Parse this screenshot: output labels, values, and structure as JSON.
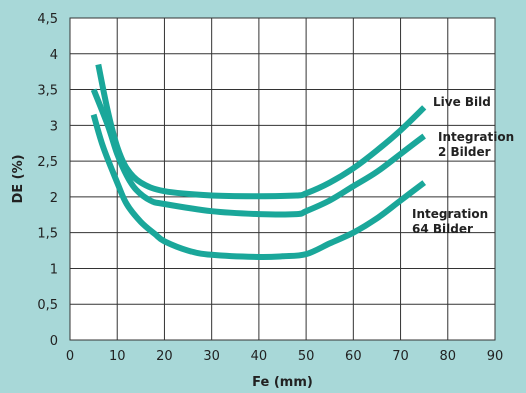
{
  "chart_data": {
    "type": "line",
    "title": "",
    "xlabel": "Fe (mm)",
    "ylabel": "DE (%)",
    "xlim": [
      0,
      90
    ],
    "ylim": [
      0,
      4.5
    ],
    "x_ticks": [
      "0",
      "10",
      "20",
      "30",
      "40",
      "50",
      "60",
      "70",
      "80",
      "90"
    ],
    "y_ticks": [
      "0",
      "0,5",
      "1",
      "1,5",
      "2",
      "2,5",
      "3",
      "3,5",
      "4",
      "4,5"
    ],
    "grid": true,
    "colors": {
      "background": "#a8d8d8",
      "plot_area": "#ffffff",
      "grid": "#333333",
      "series": "#1aa79a"
    },
    "series": [
      {
        "label_lines": [
          "Live Bild"
        ],
        "points": [
          [
            6,
            3.85
          ],
          [
            8,
            3.2
          ],
          [
            10,
            2.7
          ],
          [
            12,
            2.4
          ],
          [
            15,
            2.2
          ],
          [
            20,
            2.08
          ],
          [
            30,
            2.02
          ],
          [
            40,
            2.01
          ],
          [
            48,
            2.02
          ],
          [
            50,
            2.05
          ],
          [
            55,
            2.2
          ],
          [
            60,
            2.4
          ],
          [
            65,
            2.65
          ],
          [
            70,
            2.93
          ],
          [
            75,
            3.25
          ]
        ]
      },
      {
        "label_lines": [
          "Integration",
          "2 Bilder"
        ],
        "points": [
          [
            5,
            3.5
          ],
          [
            8,
            3.0
          ],
          [
            10,
            2.6
          ],
          [
            12,
            2.3
          ],
          [
            14,
            2.1
          ],
          [
            17,
            1.95
          ],
          [
            20,
            1.9
          ],
          [
            30,
            1.8
          ],
          [
            40,
            1.76
          ],
          [
            48,
            1.76
          ],
          [
            50,
            1.8
          ],
          [
            55,
            1.95
          ],
          [
            60,
            2.15
          ],
          [
            65,
            2.35
          ],
          [
            70,
            2.6
          ],
          [
            75,
            2.85
          ]
        ]
      },
      {
        "label_lines": [
          "Integration",
          "64  Bilder"
        ],
        "points": [
          [
            5,
            3.15
          ],
          [
            7,
            2.7
          ],
          [
            10,
            2.2
          ],
          [
            12,
            1.9
          ],
          [
            15,
            1.65
          ],
          [
            18,
            1.48
          ],
          [
            20,
            1.38
          ],
          [
            25,
            1.25
          ],
          [
            30,
            1.19
          ],
          [
            40,
            1.16
          ],
          [
            45,
            1.17
          ],
          [
            50,
            1.2
          ],
          [
            55,
            1.35
          ],
          [
            60,
            1.5
          ],
          [
            65,
            1.7
          ],
          [
            70,
            1.95
          ],
          [
            75,
            2.2
          ]
        ]
      }
    ]
  }
}
